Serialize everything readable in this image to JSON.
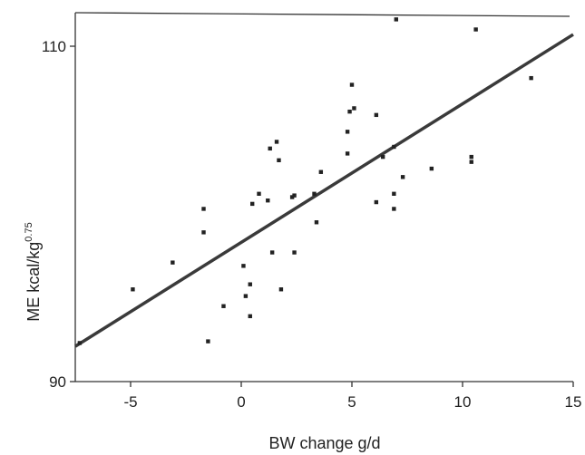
{
  "chart_data": {
    "type": "scatter",
    "title": "",
    "xlabel": "BW change g/d",
    "ylabel_main": "ME kcal/kg",
    "ylabel_sup": "0.75",
    "xlim": [
      -7.5,
      15
    ],
    "ylim": [
      90,
      112
    ],
    "x_ticks": [
      -5,
      0,
      5,
      10,
      15
    ],
    "y_ticks": [
      90,
      110
    ],
    "grid": false,
    "legend": "none",
    "series": [
      {
        "points": [
          [
            -7.3,
            92.3
          ],
          [
            -4.9,
            95.5
          ],
          [
            -3.1,
            97.1
          ],
          [
            -1.7,
            98.9
          ],
          [
            -1.7,
            100.3
          ],
          [
            -1.5,
            92.4
          ],
          [
            -0.8,
            94.5
          ],
          [
            0.1,
            96.9
          ],
          [
            0.2,
            95.1
          ],
          [
            0.4,
            95.8
          ],
          [
            0.4,
            93.9
          ],
          [
            0.5,
            100.6
          ],
          [
            0.8,
            101.2
          ],
          [
            1.2,
            100.8
          ],
          [
            1.3,
            103.9
          ],
          [
            1.4,
            97.7
          ],
          [
            1.6,
            104.3
          ],
          [
            1.7,
            103.2
          ],
          [
            1.8,
            95.5
          ],
          [
            2.3,
            101.0
          ],
          [
            2.4,
            101.1
          ],
          [
            2.4,
            97.7
          ],
          [
            3.3,
            101.2
          ],
          [
            3.4,
            99.5
          ],
          [
            3.6,
            102.5
          ],
          [
            4.8,
            104.9
          ],
          [
            4.8,
            103.6
          ],
          [
            4.9,
            106.1
          ],
          [
            5.0,
            107.7
          ],
          [
            5.1,
            106.3
          ],
          [
            6.1,
            105.9
          ],
          [
            6.1,
            100.7
          ],
          [
            6.4,
            103.4
          ],
          [
            6.9,
            100.3
          ],
          [
            6.9,
            101.2
          ],
          [
            6.9,
            104.0
          ],
          [
            7.0,
            111.6
          ],
          [
            7.3,
            102.2
          ],
          [
            8.6,
            102.7
          ],
          [
            10.4,
            103.1
          ],
          [
            10.4,
            103.4
          ],
          [
            10.6,
            111.0
          ],
          [
            13.1,
            108.1
          ]
        ]
      }
    ],
    "regression_line": {
      "x": [
        -7.5,
        15
      ],
      "y": [
        92.1,
        110.7
      ]
    }
  }
}
